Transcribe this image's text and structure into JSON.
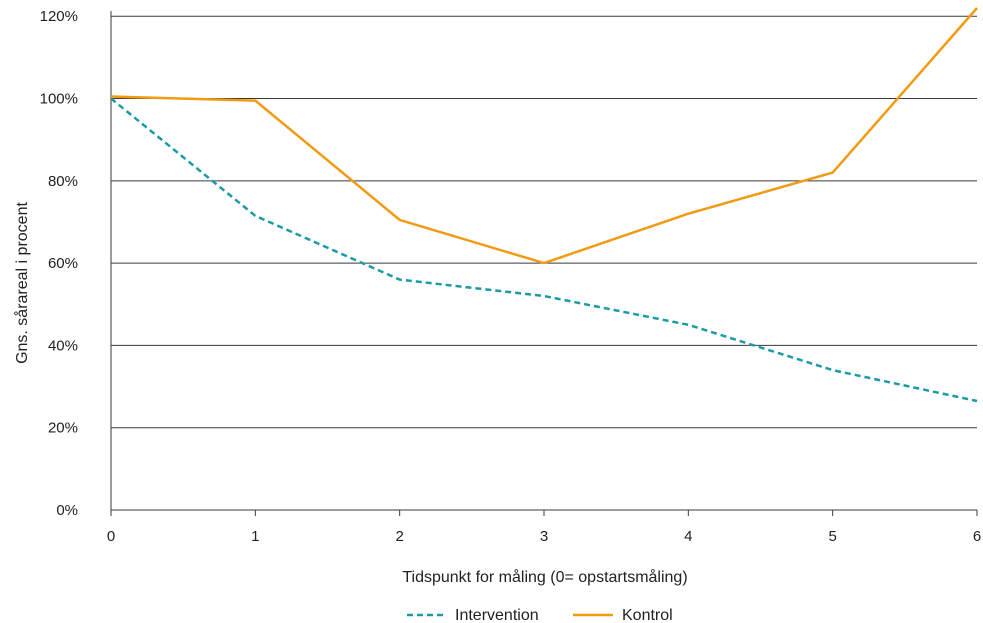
{
  "chart_data": {
    "type": "line",
    "title": "",
    "xlabel": "Tidspunkt for måling (0= opstartsmåling)",
    "ylabel": "Gns. sårareal i procent",
    "x": [
      0,
      1,
      2,
      3,
      4,
      5,
      6
    ],
    "x_tick_labels": [
      "0",
      "1",
      "2",
      "3",
      "4",
      "5",
      "6"
    ],
    "y_tick_values": [
      0,
      20,
      40,
      60,
      80,
      100,
      120
    ],
    "y_tick_labels": [
      "0%",
      "20%",
      "40%",
      "60%",
      "80%",
      "100%",
      "120%"
    ],
    "xlim": [
      0,
      6
    ],
    "ylim": [
      0,
      122
    ],
    "grid": "horizontal",
    "legend_position": "bottom-center",
    "series": [
      {
        "name": "Intervention",
        "color": "#1a9ba6",
        "dash": "dashed",
        "values": [
          100,
          71.5,
          56,
          52,
          45,
          34,
          26.5
        ]
      },
      {
        "name": "Kontrol",
        "color": "#f19a12",
        "dash": "solid",
        "values": [
          100.5,
          99.5,
          70.5,
          60,
          72,
          82,
          122
        ]
      }
    ]
  }
}
